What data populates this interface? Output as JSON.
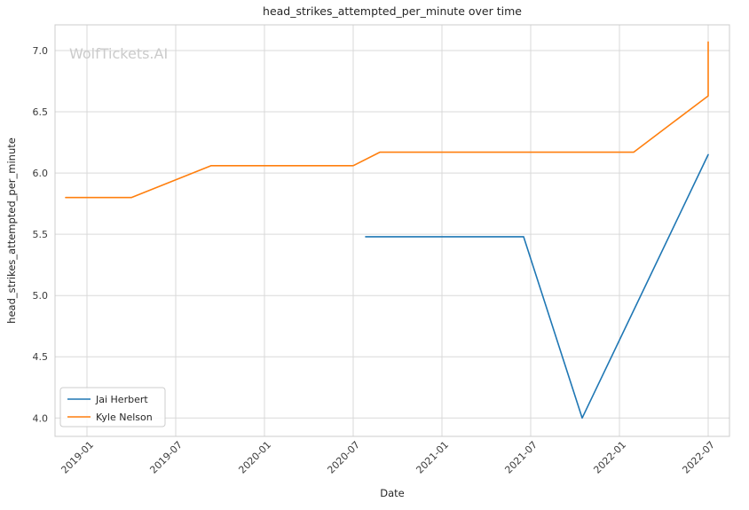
{
  "chart_data": {
    "type": "line",
    "title": "head_strikes_attempted_per_minute over time",
    "xlabel": "Date",
    "ylabel": "head_strikes_attempted_per_minute",
    "watermark": "WolfTickets.AI",
    "grid": true,
    "legend_position": "lower left",
    "xlim": [
      2018.82,
      2022.62
    ],
    "ylim": [
      3.85,
      7.21
    ],
    "x_ticks": [
      {
        "v": 2019.0,
        "label": "2019-01"
      },
      {
        "v": 2019.5,
        "label": "2019-07"
      },
      {
        "v": 2020.0,
        "label": "2020-01"
      },
      {
        "v": 2020.5,
        "label": "2020-07"
      },
      {
        "v": 2021.0,
        "label": "2021-01"
      },
      {
        "v": 2021.5,
        "label": "2021-07"
      },
      {
        "v": 2022.0,
        "label": "2022-01"
      },
      {
        "v": 2022.5,
        "label": "2022-07"
      }
    ],
    "y_ticks": [
      {
        "v": 4.0,
        "label": "4.0"
      },
      {
        "v": 4.5,
        "label": "4.5"
      },
      {
        "v": 5.0,
        "label": "5.0"
      },
      {
        "v": 5.5,
        "label": "5.5"
      },
      {
        "v": 6.0,
        "label": "6.0"
      },
      {
        "v": 6.5,
        "label": "6.5"
      },
      {
        "v": 7.0,
        "label": "7.0"
      }
    ],
    "series": [
      {
        "name": "Jai Herbert",
        "color": "#1f77b4",
        "points": [
          [
            2020.57,
            5.48
          ],
          [
            2021.46,
            5.48
          ],
          [
            2021.79,
            4.0
          ],
          [
            2022.5,
            6.15
          ]
        ]
      },
      {
        "name": "Kyle Nelson",
        "color": "#ff7f0e",
        "points": [
          [
            2018.88,
            5.8
          ],
          [
            2019.25,
            5.8
          ],
          [
            2019.7,
            6.06
          ],
          [
            2020.5,
            6.06
          ],
          [
            2020.65,
            6.17
          ],
          [
            2022.08,
            6.17
          ],
          [
            2022.5,
            6.63
          ],
          [
            2022.5,
            7.07
          ]
        ]
      }
    ],
    "colors": {
      "grid": "#d9d9d9",
      "axes_border": "#cccccc",
      "legend_border": "#cccccc"
    }
  }
}
